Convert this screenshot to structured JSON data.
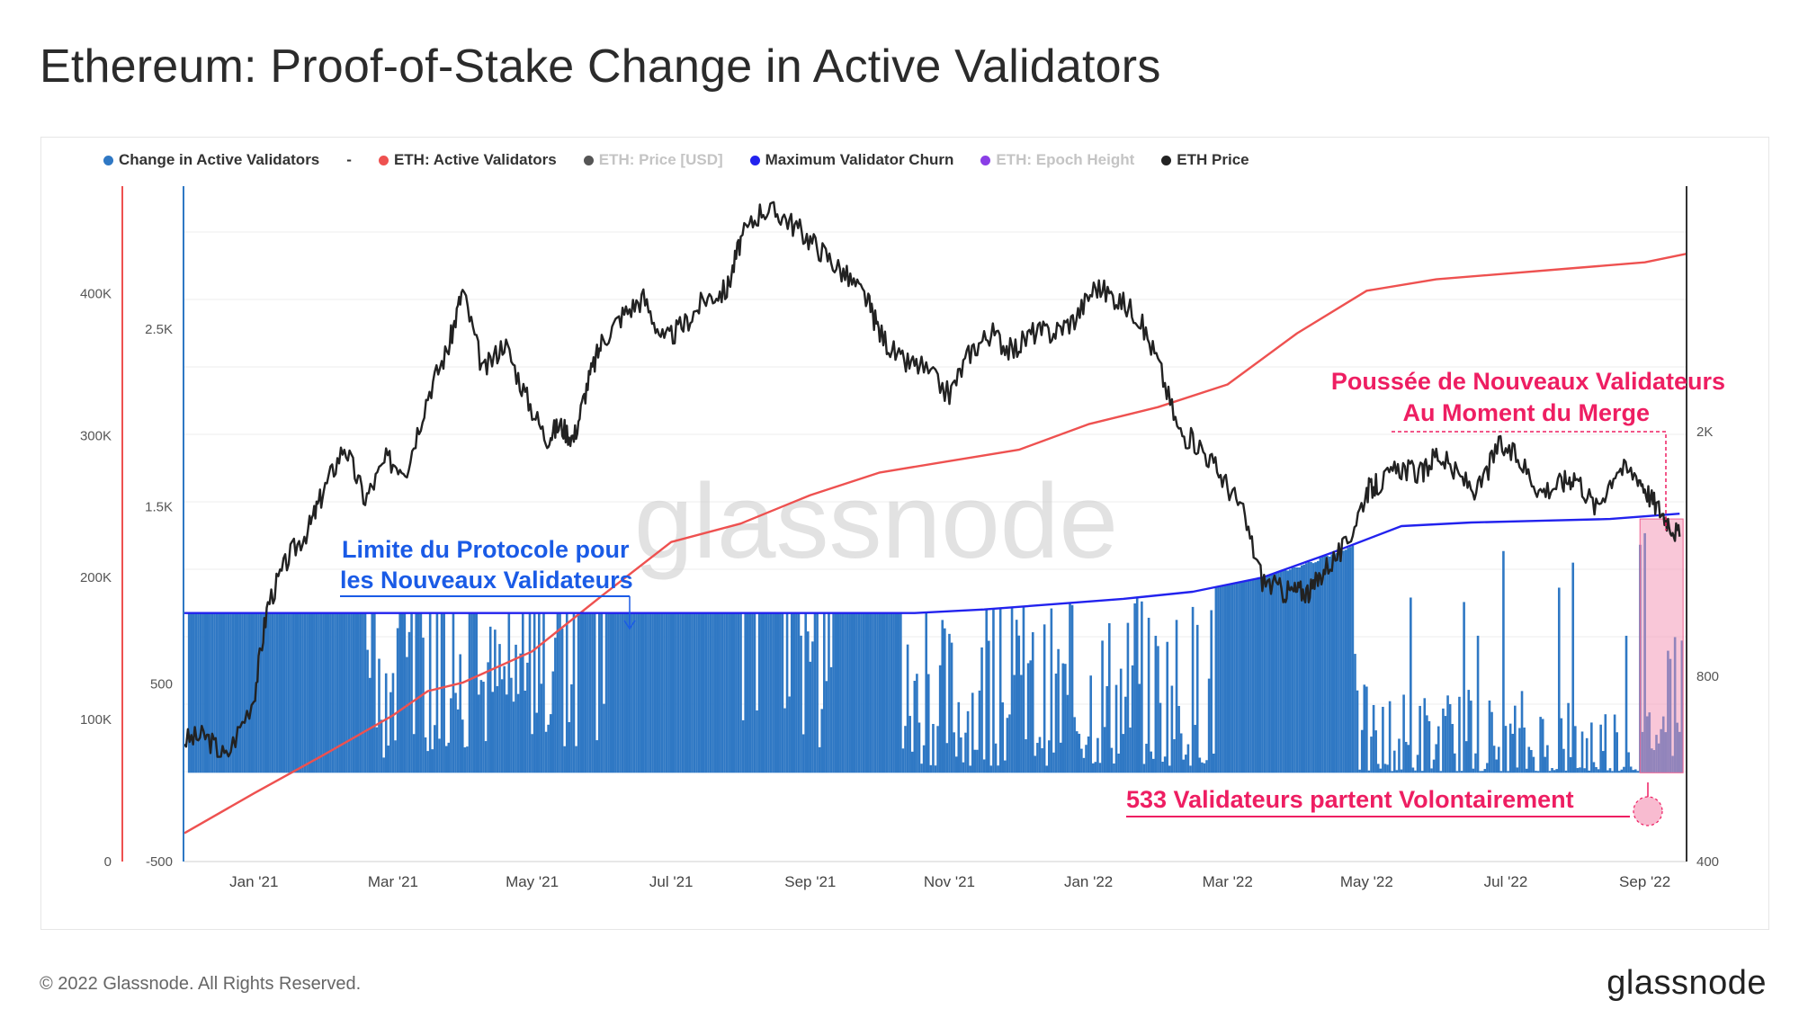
{
  "title": "Ethereum: Proof-of-Stake Change in Active Validators",
  "footer": "© 2022 Glassnode. All Rights Reserved.",
  "brand": "glassnode",
  "watermark": "glassnode",
  "legend": [
    {
      "label": "Change in Active Validators",
      "color": "#2f78c4",
      "muted": false
    },
    {
      "label": "ETH: Active Validators",
      "color": "#ee5150",
      "muted": false
    },
    {
      "label": "ETH: Price [USD]",
      "color": "#555555",
      "muted": true
    },
    {
      "label": "Maximum Validator Churn",
      "color": "#2222ee",
      "muted": false
    },
    {
      "label": "ETH: Epoch Height",
      "color": "#8a3ee6",
      "muted": true
    },
    {
      "label": "ETH Price",
      "color": "#222222",
      "muted": false
    }
  ],
  "legend_separator": "-",
  "chart_data": {
    "type": "bar+line",
    "x_ticks": [
      "Jan '21",
      "Mar '21",
      "May '21",
      "Jul '21",
      "Sep '21",
      "Nov '21",
      "Jan '22",
      "Mar '22",
      "May '22",
      "Jul '22",
      "Sep '22"
    ],
    "x_range_months": [
      -1.0,
      20.6
    ],
    "axes": {
      "active_validators": {
        "ticks": [
          "0",
          "100K",
          "200K",
          "300K",
          "400K"
        ],
        "tick_values": [
          0,
          100000,
          200000,
          300000,
          400000
        ],
        "range": [
          0,
          475000
        ]
      },
      "change": {
        "ticks": [
          "-500",
          "500",
          "1.5K",
          "2.5K"
        ],
        "tick_values": [
          -500,
          500,
          1500,
          2500
        ],
        "range": [
          -500,
          3300
        ]
      },
      "price": {
        "ticks": [
          "400",
          "800",
          "2K"
        ],
        "tick_values": [
          400,
          800,
          2000
        ],
        "range": [
          400,
          5000
        ],
        "scale": "log"
      }
    },
    "series": [
      {
        "name": "ETH: Active Validators",
        "color": "#ee5150",
        "x": [
          -1.0,
          0.0,
          1.0,
          2.0,
          2.5,
          3.0,
          4.0,
          5.0,
          6.0,
          7.0,
          8.0,
          9.0,
          10.0,
          11.0,
          12.0,
          13.0,
          14.0,
          15.0,
          16.0,
          17.0,
          18.0,
          19.0,
          20.0,
          20.6
        ],
        "y": [
          20000,
          48000,
          75000,
          103000,
          120000,
          126000,
          148000,
          187000,
          225000,
          238000,
          258000,
          274000,
          282000,
          290000,
          308000,
          320000,
          336000,
          372000,
          402000,
          410000,
          414000,
          418000,
          422000,
          428000
        ]
      },
      {
        "name": "Maximum Validator Churn",
        "color": "#2222ee",
        "x": [
          -1.0,
          9.5,
          10.5,
          11.5,
          12.5,
          13.5,
          14.5,
          15.5,
          16.5,
          17.5,
          18.5,
          19.5,
          20.5
        ],
        "y": [
          900,
          900,
          920,
          950,
          980,
          1020,
          1100,
          1240,
          1390,
          1410,
          1420,
          1430,
          1460
        ]
      },
      {
        "name": "ETH Price",
        "color": "#222222",
        "x": [
          -1.0,
          -0.7,
          -0.4,
          0.0,
          0.2,
          0.5,
          0.8,
          1.0,
          1.3,
          1.6,
          1.9,
          2.2,
          2.5,
          2.8,
          3.0,
          3.3,
          3.6,
          3.9,
          4.2,
          4.4,
          4.6,
          4.8,
          5.0,
          5.3,
          5.6,
          5.9,
          6.2,
          6.5,
          6.8,
          7.0,
          7.3,
          7.6,
          7.9,
          8.2,
          8.5,
          8.8,
          9.0,
          9.3,
          9.6,
          10.0,
          10.3,
          10.6,
          10.9,
          11.2,
          11.5,
          11.8,
          12.1,
          12.4,
          12.7,
          13.0,
          13.3,
          13.6,
          13.9,
          14.2,
          14.5,
          14.8,
          15.0,
          15.2,
          15.4,
          15.7,
          16.0,
          16.2,
          16.5,
          16.8,
          17.0,
          17.3,
          17.6,
          17.9,
          18.2,
          18.5,
          18.8,
          19.0,
          19.3,
          19.6,
          19.9,
          20.1,
          20.3,
          20.5
        ],
        "y": [
          630,
          640,
          590,
          740,
          1050,
          1250,
          1400,
          1600,
          1900,
          1550,
          1800,
          1750,
          2300,
          2750,
          3400,
          2500,
          2800,
          2300,
          1950,
          2050,
          1950,
          2400,
          2800,
          3100,
          3300,
          2800,
          3000,
          3300,
          3400,
          4100,
          4600,
          4500,
          4200,
          3900,
          3600,
          3300,
          2900,
          2600,
          2550,
          2300,
          2700,
          2900,
          2700,
          2900,
          2900,
          3050,
          3450,
          3300,
          3100,
          2600,
          2000,
          1900,
          1700,
          1500,
          1150,
          1100,
          1100,
          1100,
          1200,
          1300,
          1600,
          1650,
          1750,
          1700,
          1850,
          1700,
          1600,
          1900,
          1800,
          1600,
          1650,
          1700,
          1500,
          1750,
          1700,
          1550,
          1450,
          1350
        ]
      }
    ],
    "bars": {
      "name": "Change in Active Validators",
      "color": "#2f78c4",
      "note": "daily change, mostly at the churn limit (~900) through 2021, then near the churn limit or lower through 2022"
    }
  },
  "annotations": {
    "protocol_limit": {
      "lines": [
        "Limite du Protocole pour",
        "les Nouveaux Validateurs"
      ],
      "color": "#1a5be6"
    },
    "merge_push": {
      "lines": [
        "Poussée de Nouveaux Validateurs",
        "Au Moment du Merge"
      ],
      "color": "#ee1e62"
    },
    "voluntary_exit": {
      "lines": [
        "533 Validateurs partent Volontairement"
      ],
      "color": "#ee1e62"
    }
  }
}
